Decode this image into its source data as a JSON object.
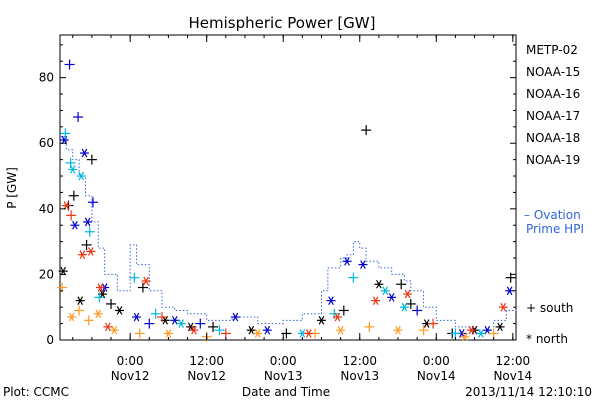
{
  "chart_data": {
    "type": "scatter",
    "title": "Hemispheric Power [GW]",
    "ylabel": "P [GW]",
    "xlabel": "Date and Time",
    "xlim": [
      "2013-11-11T13:00",
      "2013-11-14T12:30"
    ],
    "ylim": [
      0,
      93
    ],
    "y_ticks": [
      0,
      20,
      40,
      60,
      80
    ],
    "x_ticks": [
      {
        "x": "2013-11-12T00:00",
        "time": "0:00",
        "date": "Nov12"
      },
      {
        "x": "2013-11-12T12:00",
        "time": "12:00",
        "date": "Nov12"
      },
      {
        "x": "2013-11-13T00:00",
        "time": "0:00",
        "date": "Nov13"
      },
      {
        "x": "2013-11-13T12:00",
        "time": "12:00",
        "date": "Nov13"
      },
      {
        "x": "2013-11-14T00:00",
        "time": "0:00",
        "date": "Nov14"
      },
      {
        "x": "2013-11-14T12:00",
        "time": "12:00",
        "date": "Nov14"
      }
    ],
    "legend_placement": "right",
    "hemisphere_legend": {
      "south_symbol": "+",
      "south_label": "south",
      "north_symbol": "*",
      "north_label": "north"
    },
    "series": [
      {
        "name": "METP-02",
        "color": "#000000",
        "points": [
          {
            "x": "2013-11-11T13:30",
            "y": 21,
            "h": "n"
          },
          {
            "x": "2013-11-11T14:20",
            "y": 41,
            "h": "s"
          },
          {
            "x": "2013-11-11T15:10",
            "y": 44,
            "h": "s"
          },
          {
            "x": "2013-11-11T16:10",
            "y": 12,
            "h": "n"
          },
          {
            "x": "2013-11-11T17:10",
            "y": 29,
            "h": "s"
          },
          {
            "x": "2013-11-11T18:00",
            "y": 55,
            "h": "s"
          },
          {
            "x": "2013-11-11T19:40",
            "y": 14,
            "h": "n"
          },
          {
            "x": "2013-11-11T21:00",
            "y": 11,
            "h": "s"
          },
          {
            "x": "2013-11-11T22:20",
            "y": 9,
            "h": "n"
          },
          {
            "x": "2013-11-12T02:00",
            "y": 16,
            "h": "s"
          },
          {
            "x": "2013-11-12T05:30",
            "y": 6,
            "h": "n"
          },
          {
            "x": "2013-11-12T09:30",
            "y": 4,
            "h": "n"
          },
          {
            "x": "2013-11-12T13:00",
            "y": 4,
            "h": "s"
          },
          {
            "x": "2013-11-12T19:00",
            "y": 3,
            "h": "n"
          },
          {
            "x": "2013-11-13T00:30",
            "y": 2,
            "h": "s"
          },
          {
            "x": "2013-11-13T06:00",
            "y": 6,
            "h": "n"
          },
          {
            "x": "2013-11-13T09:30",
            "y": 9,
            "h": "s"
          },
          {
            "x": "2013-11-13T13:00",
            "y": 64,
            "h": "s"
          },
          {
            "x": "2013-11-13T15:00",
            "y": 17,
            "h": "n"
          },
          {
            "x": "2013-11-13T18:30",
            "y": 17,
            "h": "s"
          },
          {
            "x": "2013-11-13T20:00",
            "y": 11,
            "h": "s"
          },
          {
            "x": "2013-11-13T22:30",
            "y": 5,
            "h": "n"
          },
          {
            "x": "2013-11-14T02:30",
            "y": 2,
            "h": "s"
          },
          {
            "x": "2013-11-14T06:00",
            "y": 3,
            "h": "n"
          },
          {
            "x": "2013-11-14T10:00",
            "y": 4,
            "h": "n"
          },
          {
            "x": "2013-11-14T11:40",
            "y": 19,
            "h": "s"
          }
        ]
      },
      {
        "name": "NOAA-15",
        "color": "#0000cc",
        "points": [
          {
            "x": "2013-11-11T13:40",
            "y": 61,
            "h": "n"
          },
          {
            "x": "2013-11-11T14:30",
            "y": 84,
            "h": "s"
          },
          {
            "x": "2013-11-11T15:20",
            "y": 35,
            "h": "n"
          },
          {
            "x": "2013-11-11T15:50",
            "y": 68,
            "h": "s"
          },
          {
            "x": "2013-11-11T16:50",
            "y": 57,
            "h": "n"
          },
          {
            "x": "2013-11-11T17:20",
            "y": 36,
            "h": "n"
          },
          {
            "x": "2013-11-11T18:10",
            "y": 42,
            "h": "s"
          },
          {
            "x": "2013-11-11T20:00",
            "y": 16,
            "h": "n"
          },
          {
            "x": "2013-11-12T01:00",
            "y": 7,
            "h": "n"
          },
          {
            "x": "2013-11-12T03:00",
            "y": 5,
            "h": "s"
          },
          {
            "x": "2013-11-12T07:00",
            "y": 6,
            "h": "n"
          },
          {
            "x": "2013-11-12T11:00",
            "y": 5,
            "h": "s"
          },
          {
            "x": "2013-11-12T16:30",
            "y": 7,
            "h": "n"
          },
          {
            "x": "2013-11-12T21:30",
            "y": 3,
            "h": "n"
          },
          {
            "x": "2013-11-13T07:30",
            "y": 12,
            "h": "n"
          },
          {
            "x": "2013-11-13T10:00",
            "y": 24,
            "h": "n"
          },
          {
            "x": "2013-11-13T12:30",
            "y": 23,
            "h": "n"
          },
          {
            "x": "2013-11-13T17:00",
            "y": 13,
            "h": "n"
          },
          {
            "x": "2013-11-13T21:00",
            "y": 9,
            "h": "s"
          },
          {
            "x": "2013-11-14T04:00",
            "y": 2,
            "h": "n"
          },
          {
            "x": "2013-11-14T08:00",
            "y": 3,
            "h": "n"
          },
          {
            "x": "2013-11-14T11:30",
            "y": 15,
            "h": "n"
          }
        ]
      },
      {
        "name": "NOAA-16",
        "color": "#00b8e0",
        "points": [
          {
            "x": "2013-11-11T13:50",
            "y": 63,
            "h": "s"
          },
          {
            "x": "2013-11-11T14:40",
            "y": 54,
            "h": "s"
          },
          {
            "x": "2013-11-11T15:00",
            "y": 52,
            "h": "n"
          },
          {
            "x": "2013-11-11T16:20",
            "y": 50,
            "h": "n"
          },
          {
            "x": "2013-11-11T17:40",
            "y": 33,
            "h": "s"
          },
          {
            "x": "2013-11-11T19:10",
            "y": 13,
            "h": "s"
          },
          {
            "x": "2013-11-12T00:40",
            "y": 19,
            "h": "s"
          },
          {
            "x": "2013-11-12T04:00",
            "y": 8,
            "h": "s"
          },
          {
            "x": "2013-11-12T08:00",
            "y": 5,
            "h": "n"
          },
          {
            "x": "2013-11-12T14:00",
            "y": 3,
            "h": "s"
          },
          {
            "x": "2013-11-13T03:00",
            "y": 2,
            "h": "n"
          },
          {
            "x": "2013-11-13T08:00",
            "y": 8,
            "h": "s"
          },
          {
            "x": "2013-11-13T11:00",
            "y": 19,
            "h": "s"
          },
          {
            "x": "2013-11-13T16:00",
            "y": 15,
            "h": "n"
          },
          {
            "x": "2013-11-13T19:00",
            "y": 10,
            "h": "n"
          },
          {
            "x": "2013-11-14T03:00",
            "y": 2,
            "h": "s"
          },
          {
            "x": "2013-11-14T07:00",
            "y": 2,
            "h": "n"
          }
        ]
      },
      {
        "name": "NOAA-17",
        "color": "#00dd66",
        "points": []
      },
      {
        "name": "NOAA-18",
        "color": "#ff9a22",
        "points": [
          {
            "x": "2013-11-11T13:20",
            "y": 16,
            "h": "s"
          },
          {
            "x": "2013-11-11T14:50",
            "y": 7,
            "h": "n"
          },
          {
            "x": "2013-11-11T16:00",
            "y": 9,
            "h": "s"
          },
          {
            "x": "2013-11-11T17:30",
            "y": 6,
            "h": "s"
          },
          {
            "x": "2013-11-11T19:00",
            "y": 8,
            "h": "n"
          },
          {
            "x": "2013-11-11T21:30",
            "y": 3,
            "h": "n"
          },
          {
            "x": "2013-11-12T01:30",
            "y": 2,
            "h": "s"
          },
          {
            "x": "2013-11-12T06:00",
            "y": 2,
            "h": "n"
          },
          {
            "x": "2013-11-12T12:00",
            "y": 1,
            "h": "s"
          },
          {
            "x": "2013-11-12T20:00",
            "y": 2,
            "h": "n"
          },
          {
            "x": "2013-11-13T05:00",
            "y": 2,
            "h": "s"
          },
          {
            "x": "2013-11-13T09:00",
            "y": 3,
            "h": "n"
          },
          {
            "x": "2013-11-13T13:30",
            "y": 4,
            "h": "s"
          },
          {
            "x": "2013-11-13T18:00",
            "y": 3,
            "h": "n"
          },
          {
            "x": "2013-11-13T22:00",
            "y": 3,
            "h": "s"
          },
          {
            "x": "2013-11-14T04:30",
            "y": 1,
            "h": "n"
          },
          {
            "x": "2013-11-14T09:00",
            "y": 2,
            "h": "s"
          }
        ]
      },
      {
        "name": "NOAA-19",
        "color": "#ee3311",
        "points": [
          {
            "x": "2013-11-11T14:00",
            "y": 41,
            "h": "n"
          },
          {
            "x": "2013-11-11T14:45",
            "y": 38,
            "h": "s"
          },
          {
            "x": "2013-11-11T16:30",
            "y": 26,
            "h": "n"
          },
          {
            "x": "2013-11-11T17:50",
            "y": 27,
            "h": "n"
          },
          {
            "x": "2013-11-11T19:20",
            "y": 16,
            "h": "n"
          },
          {
            "x": "2013-11-11T20:30",
            "y": 4,
            "h": "n"
          },
          {
            "x": "2013-11-12T02:30",
            "y": 18,
            "h": "n"
          },
          {
            "x": "2013-11-12T05:00",
            "y": 7,
            "h": "s"
          },
          {
            "x": "2013-11-12T10:00",
            "y": 3,
            "h": "n"
          },
          {
            "x": "2013-11-12T15:00",
            "y": 2,
            "h": "s"
          },
          {
            "x": "2013-11-13T04:00",
            "y": 2,
            "h": "n"
          },
          {
            "x": "2013-11-13T08:30",
            "y": 7,
            "h": "n"
          },
          {
            "x": "2013-11-13T14:30",
            "y": 12,
            "h": "n"
          },
          {
            "x": "2013-11-13T19:30",
            "y": 14,
            "h": "n"
          },
          {
            "x": "2013-11-13T23:30",
            "y": 5,
            "h": "s"
          },
          {
            "x": "2013-11-14T05:30",
            "y": 3,
            "h": "n"
          },
          {
            "x": "2013-11-14T10:30",
            "y": 10,
            "h": "n"
          }
        ]
      }
    ],
    "ovation_series": {
      "name": "Ovation Prime HPI",
      "name_line1": "Ovation",
      "name_line2": "Prime HPI",
      "legend_symbol": "–",
      "color": "#3366dd",
      "style": "dotted-step",
      "points": [
        {
          "x": "2013-11-11T13:00",
          "y": 62
        },
        {
          "x": "2013-11-11T14:00",
          "y": 58
        },
        {
          "x": "2013-11-11T15:00",
          "y": 55
        },
        {
          "x": "2013-11-11T16:00",
          "y": 50
        },
        {
          "x": "2013-11-11T17:00",
          "y": 44
        },
        {
          "x": "2013-11-11T18:00",
          "y": 36
        },
        {
          "x": "2013-11-11T19:00",
          "y": 28
        },
        {
          "x": "2013-11-11T20:00",
          "y": 20
        },
        {
          "x": "2013-11-11T22:00",
          "y": 15
        },
        {
          "x": "2013-11-12T00:00",
          "y": 29
        },
        {
          "x": "2013-11-12T01:00",
          "y": 23
        },
        {
          "x": "2013-11-12T03:00",
          "y": 15
        },
        {
          "x": "2013-11-12T05:00",
          "y": 10
        },
        {
          "x": "2013-11-12T07:00",
          "y": 9
        },
        {
          "x": "2013-11-12T09:00",
          "y": 8
        },
        {
          "x": "2013-11-12T12:00",
          "y": 6
        },
        {
          "x": "2013-11-12T16:00",
          "y": 7
        },
        {
          "x": "2013-11-12T20:00",
          "y": 5
        },
        {
          "x": "2013-11-13T00:00",
          "y": 6
        },
        {
          "x": "2013-11-13T03:00",
          "y": 8
        },
        {
          "x": "2013-11-13T06:00",
          "y": 15
        },
        {
          "x": "2013-11-13T07:00",
          "y": 22
        },
        {
          "x": "2013-11-13T09:00",
          "y": 25
        },
        {
          "x": "2013-11-13T10:00",
          "y": 26
        },
        {
          "x": "2013-11-13T11:00",
          "y": 30
        },
        {
          "x": "2013-11-13T12:00",
          "y": 28
        },
        {
          "x": "2013-11-13T13:00",
          "y": 24
        },
        {
          "x": "2013-11-13T15:00",
          "y": 22
        },
        {
          "x": "2013-11-13T17:00",
          "y": 20
        },
        {
          "x": "2013-11-13T19:00",
          "y": 18
        },
        {
          "x": "2013-11-13T20:00",
          "y": 15
        },
        {
          "x": "2013-11-13T22:00",
          "y": 10
        },
        {
          "x": "2013-11-14T00:00",
          "y": 6
        },
        {
          "x": "2013-11-14T03:00",
          "y": 4
        },
        {
          "x": "2013-11-14T06:00",
          "y": 3
        },
        {
          "x": "2013-11-14T09:00",
          "y": 6
        },
        {
          "x": "2013-11-14T11:00",
          "y": 9
        },
        {
          "x": "2013-11-14T12:30",
          "y": 10
        }
      ]
    }
  },
  "footer": {
    "plot_credit": "Plot: CCMC",
    "timestamp": "2013/11/14 12:10:10"
  }
}
